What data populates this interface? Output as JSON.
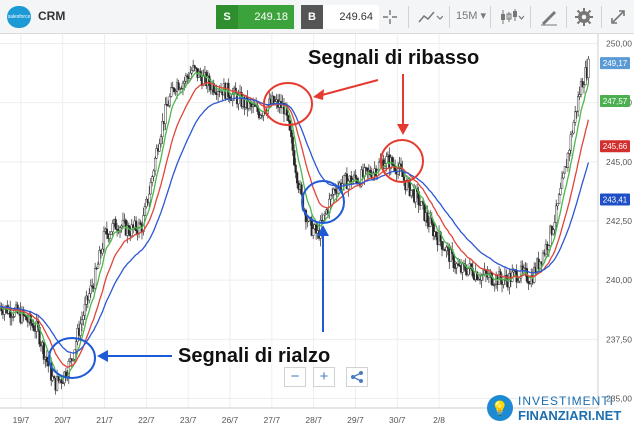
{
  "toolbar": {
    "logo_text": "salesforce",
    "symbol": "CRM",
    "sell_tag": "S",
    "sell_price": "249.18",
    "buy_tag": "B",
    "buy_price": "249.64",
    "timeframe": "15M",
    "icons": [
      "crosshair-icon",
      "indicators-icon",
      "timeframe-icon",
      "candles-icon",
      "draw-icon",
      "gear-icon",
      "expand-icon"
    ]
  },
  "zoom_controls": {
    "minus": "−",
    "plus": "+",
    "share": "share-icon"
  },
  "annotations": {
    "ribasso": "Segnali di ribasso",
    "rialzo": "Segnali di rialzo"
  },
  "brand": {
    "line1": "INVESTIMENTI",
    "line2": "FINANZIARI.NET"
  },
  "chart_data": {
    "type": "candlestick",
    "title": "",
    "xlabel": "",
    "ylabel": "",
    "ylim": [
      234.6,
      250.4
    ],
    "y_ticks": [
      "250,00",
      "247,50",
      "245,00",
      "242,50",
      "240,00",
      "237,50",
      "235,00"
    ],
    "x_ticks": [
      {
        "label": "19/7",
        "x": 0.5
      },
      {
        "label": "20/7",
        "x": 1.5
      },
      {
        "label": "21/7",
        "x": 2.5
      },
      {
        "label": "22/7",
        "x": 3.5
      },
      {
        "label": "23/7",
        "x": 4.5
      },
      {
        "label": "26/7",
        "x": 5.5
      },
      {
        "label": "27/7",
        "x": 6.5
      },
      {
        "label": "28/7",
        "x": 7.5
      },
      {
        "label": "29/7",
        "x": 8.5
      },
      {
        "label": "30/7",
        "x": 9.5
      },
      {
        "label": "2/8",
        "x": 10.5
      }
    ],
    "xlim": [
      0,
      14.3
    ],
    "price_labels": [
      {
        "text": "249,17",
        "value": 249.17,
        "color": "#5b9bd5"
      },
      {
        "text": "247,57",
        "value": 247.57,
        "color": "#4caf50"
      },
      {
        "text": "245,66",
        "value": 245.66,
        "color": "#d32f2f"
      },
      {
        "text": "243,41",
        "value": 243.41,
        "color": "#1f4fc7"
      }
    ],
    "close_path": [
      [
        0.0,
        238.9
      ],
      [
        0.3,
        238.7
      ],
      [
        0.6,
        238.4
      ],
      [
        0.9,
        237.9
      ],
      [
        1.1,
        236.7
      ],
      [
        1.3,
        235.6
      ],
      [
        1.5,
        235.9
      ],
      [
        1.7,
        236.6
      ],
      [
        1.9,
        238.0
      ],
      [
        2.1,
        239.2
      ],
      [
        2.3,
        240.3
      ],
      [
        2.5,
        241.9
      ],
      [
        2.8,
        242.4
      ],
      [
        3.1,
        242.1
      ],
      [
        3.4,
        242.3
      ],
      [
        3.6,
        244.0
      ],
      [
        3.8,
        246.0
      ],
      [
        4.0,
        247.4
      ],
      [
        4.2,
        248.3
      ],
      [
        4.4,
        248.4
      ],
      [
        4.6,
        248.9
      ],
      [
        4.8,
        248.6
      ],
      [
        5.0,
        248.3
      ],
      [
        5.3,
        248.1
      ],
      [
        5.6,
        247.8
      ],
      [
        5.9,
        247.4
      ],
      [
        6.2,
        247.1
      ],
      [
        6.5,
        247.5
      ],
      [
        6.8,
        247.3
      ],
      [
        7.0,
        245.5
      ],
      [
        7.2,
        243.5
      ],
      [
        7.4,
        242.3
      ],
      [
        7.6,
        241.9
      ],
      [
        7.8,
        242.9
      ],
      [
        8.0,
        243.9
      ],
      [
        8.3,
        244.2
      ],
      [
        8.6,
        244.3
      ],
      [
        8.9,
        244.6
      ],
      [
        9.2,
        245.1
      ],
      [
        9.5,
        244.8
      ],
      [
        9.7,
        244.1
      ],
      [
        10.0,
        243.4
      ],
      [
        10.2,
        242.6
      ],
      [
        10.4,
        242.0
      ],
      [
        10.6,
        241.5
      ],
      [
        10.8,
        240.9
      ],
      [
        11.0,
        240.4
      ],
      [
        11.2,
        240.5
      ],
      [
        11.5,
        240.2
      ],
      [
        11.8,
        240.1
      ],
      [
        12.1,
        240.0
      ],
      [
        12.4,
        240.3
      ],
      [
        12.7,
        240.1
      ],
      [
        12.9,
        240.8
      ],
      [
        13.1,
        241.6
      ],
      [
        13.3,
        242.8
      ],
      [
        13.5,
        244.5
      ],
      [
        13.7,
        246.5
      ],
      [
        13.9,
        248.3
      ],
      [
        14.1,
        249.17
      ]
    ],
    "series": [
      {
        "name": "",
        "color": "#4cb84c"
      },
      {
        "name": "",
        "color": "#e0453a"
      },
      {
        "name": "",
        "color": "#2d56d4"
      }
    ]
  }
}
